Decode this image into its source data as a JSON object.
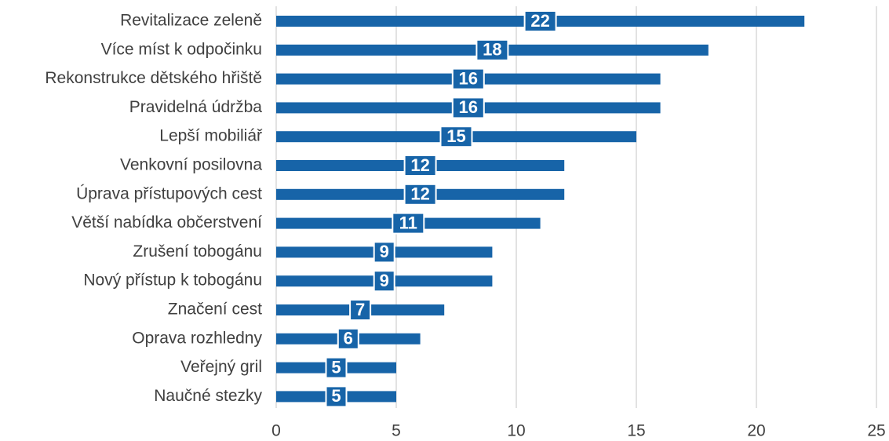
{
  "chart_data": {
    "type": "bar",
    "orientation": "horizontal",
    "categories": [
      "Revitalizace zeleně",
      "Více míst k odpočinku",
      "Rekonstrukce dětského hřiště",
      "Pravidelná údržba",
      "Lepší mobiliář",
      "Venkovní posilovna",
      "Úprava přístupových cest",
      "Větší nabídka občerstvení",
      "Zrušení tobogánu",
      "Nový přístup k tobogánu",
      "Značení cest",
      "Oprava rozhledny",
      "Veřejný gril",
      "Naučné stezky"
    ],
    "values": [
      22,
      18,
      16,
      16,
      15,
      12,
      12,
      11,
      9,
      9,
      7,
      6,
      5,
      5
    ],
    "color": "#1764a8",
    "xlim": [
      0,
      25
    ],
    "xticks": [
      0,
      5,
      10,
      15,
      20,
      25
    ],
    "grid": true
  }
}
